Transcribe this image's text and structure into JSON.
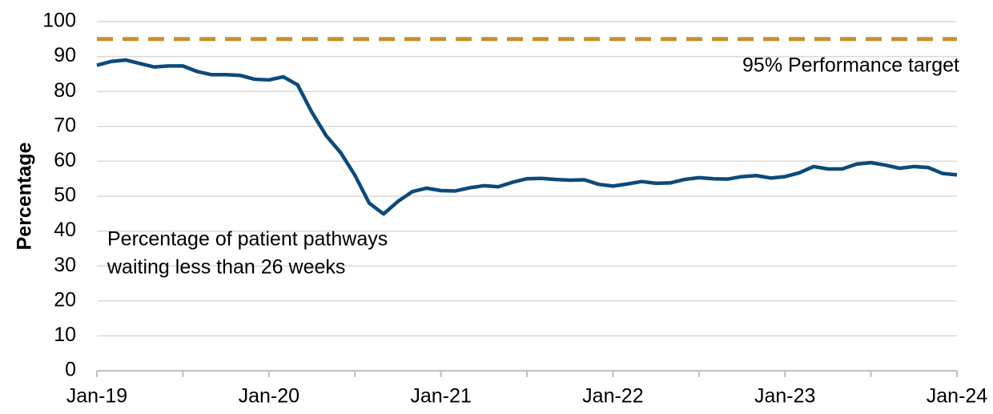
{
  "chart_data": {
    "type": "line",
    "y_label": "Percentage",
    "categories": [
      "Jan-19",
      null,
      null,
      null,
      null,
      null,
      null,
      null,
      null,
      null,
      null,
      null,
      "Jan-20",
      null,
      null,
      null,
      null,
      null,
      null,
      null,
      null,
      null,
      null,
      null,
      "Jan-21",
      null,
      null,
      null,
      null,
      null,
      null,
      null,
      null,
      null,
      null,
      null,
      "Jan-22",
      null,
      null,
      null,
      null,
      null,
      null,
      null,
      null,
      null,
      null,
      null,
      "Jan-23",
      null,
      null,
      null,
      null,
      null,
      null,
      null,
      null,
      null,
      null,
      null,
      "Jan-24"
    ],
    "series": [
      {
        "color": "#0b4a7b",
        "values": [
          87.5,
          88.6,
          89,
          88,
          87,
          87.3,
          87.3,
          85.7,
          84.8,
          84.8,
          84.6,
          83.5,
          83.3,
          84.2,
          81.9,
          74,
          67.3,
          62.5,
          56,
          48,
          44.9,
          48.5,
          51.3,
          52.3,
          51.6,
          51.5,
          52.4,
          53,
          52.7,
          54,
          55,
          55.1,
          54.8,
          54.6,
          54.7,
          53.4,
          52.9,
          53.5,
          54.2,
          53.7,
          53.8,
          54.8,
          55.3,
          55,
          54.9,
          55.6,
          55.9,
          55.2,
          55.6,
          56.7,
          58.5,
          57.8,
          57.8,
          59.2,
          59.6,
          58.9,
          58,
          58.5,
          58.2,
          56.5,
          56.1
        ]
      }
    ],
    "target": {
      "value": 95,
      "label": "95% Performance target",
      "color": "#c8902a"
    },
    "annotations": [
      {
        "lines": [
          "Percentage of patient pathways",
          "waiting less than 26 weeks"
        ]
      }
    ],
    "ylim": [
      0,
      100
    ],
    "yticks": [
      0,
      10,
      20,
      30,
      40,
      50,
      60,
      70,
      80,
      90,
      100
    ],
    "grid": true
  }
}
